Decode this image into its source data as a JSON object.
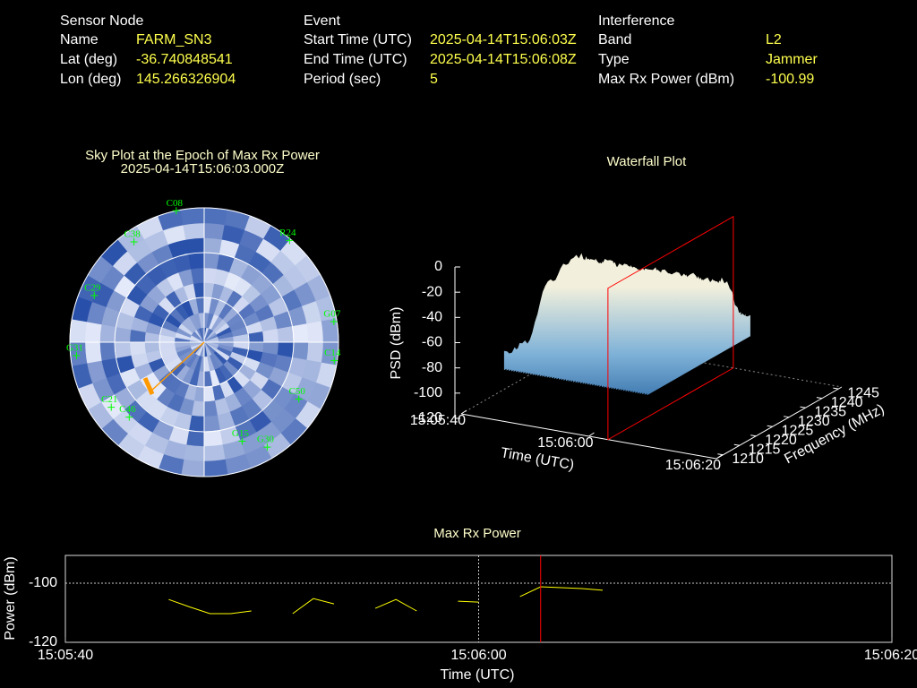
{
  "info": {
    "columns": [
      {
        "title": "Sensor Node",
        "rows": [
          {
            "label": "Name",
            "value": "FARM_SN3"
          },
          {
            "label": "Lat (deg)",
            "value": -36.740848541
          },
          {
            "label": "Lon (deg)",
            "value": 145.266326904
          }
        ]
      },
      {
        "title": "Event",
        "rows": [
          {
            "label": "Start Time (UTC)",
            "value": "2025-04-14T15:06:03Z"
          },
          {
            "label": "End Time (UTC)",
            "value": "2025-04-14T15:06:08Z"
          },
          {
            "label": "Period (sec)",
            "value": 5
          }
        ]
      },
      {
        "title": "Interference",
        "rows": [
          {
            "label": "Band",
            "value": "L2"
          },
          {
            "label": "Type",
            "value": "Jammer"
          },
          {
            "label": "Max Rx Power (dBm)",
            "value": -100.99
          }
        ]
      }
    ]
  },
  "chart_data": [
    {
      "type": "polar",
      "title": "Sky Plot at the Epoch of Max Rx Power",
      "subtitle": "2025-04-14T15:06:03.000Z",
      "rlim": [
        90,
        0
      ],
      "rticks": [
        60,
        30,
        0
      ],
      "color": "#00ff00",
      "points": [
        {
          "name": "C08",
          "az": 348,
          "el": 0
        },
        {
          "name": "R24",
          "az": 40,
          "el": 1
        },
        {
          "name": "G07",
          "az": 81,
          "el": 2
        },
        {
          "name": "C14",
          "az": 98,
          "el": 2
        },
        {
          "name": "C50",
          "az": 121,
          "el": 16
        },
        {
          "name": "G30",
          "az": 149,
          "el": 8
        },
        {
          "name": "G15",
          "az": 159,
          "el": 19
        },
        {
          "name": "C46",
          "az": 225,
          "el": 19
        },
        {
          "name": "C21",
          "az": 235,
          "el": 14
        },
        {
          "name": "G31",
          "az": 264,
          "el": 4
        },
        {
          "name": "C29",
          "az": 293,
          "el": 10
        },
        {
          "name": "C38",
          "az": 325,
          "el": 8
        }
      ]
    },
    {
      "type": "surface3d",
      "title": "Waterfall Plot",
      "xlabel": "Time (UTC)",
      "ylabel": "Frequency (MHz)",
      "zlabel": "PSD (dBm)",
      "xlim": [
        "15:05:40",
        "15:06:20"
      ],
      "xticks": [
        "15:05:40",
        "15:06:00",
        "15:06:20"
      ],
      "ylim": [
        1208,
        1246
      ],
      "yticks": [
        1210,
        1215,
        1220,
        1225,
        1230,
        1235,
        1240,
        1245
      ],
      "zlim": [
        -120,
        0
      ],
      "zticks": [
        0,
        -20,
        -40,
        -60,
        -80,
        -100,
        -120
      ],
      "marker_x": "15:06:03"
    },
    {
      "type": "line",
      "title": "Max Rx Power",
      "xlabel": "Time (UTC)",
      "ylabel": "Power (dBm)",
      "x": [
        "15:05:45",
        "15:05:46",
        "15:05:47",
        "15:05:48",
        "15:05:49",
        "15:05:50",
        "15:05:51",
        "15:05:52",
        "15:05:53",
        "15:05:54",
        "15:05:55",
        "15:05:56",
        "15:05:57",
        "15:05:58",
        "15:05:59",
        "15:06:00",
        "15:06:01",
        "15:06:02",
        "15:06:03",
        "15:06:04",
        "15:06:05",
        "15:06:06"
      ],
      "series": [
        {
          "color": "#ffff00",
          "values": [
            -105.5,
            -108.0,
            -110.3,
            -110.3,
            -109.4,
            null,
            -110.3,
            -105.2,
            -107.0,
            null,
            -108.5,
            -105.5,
            -109.4,
            null,
            -106.1,
            -106.4,
            null,
            -104.5,
            -101.2,
            -101.5,
            -101.8,
            -102.4
          ]
        }
      ],
      "xlim": [
        "15:05:40",
        "15:06:20"
      ],
      "xticks": [
        "15:05:40",
        "15:06:00",
        "15:06:20"
      ],
      "ylim": [
        -120,
        -90.6
      ],
      "yticks": [
        -120,
        -100
      ],
      "grid": true,
      "marker_x": "15:06:03"
    }
  ]
}
